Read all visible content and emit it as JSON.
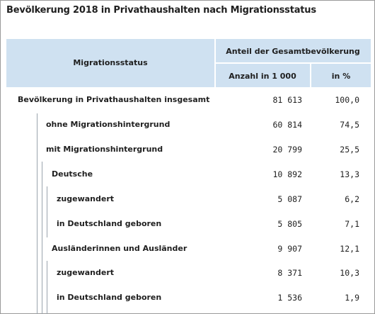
{
  "title": "Bevölkerung 2018 in Privathaushalten nach Migrationsstatus",
  "header": {
    "col1": "Migrationsstatus",
    "group": "Anteil der Gesamtbevölkerung",
    "col2": "Anzahl in 1 000",
    "col3": "in %"
  },
  "rows": [
    {
      "label": "Bevölkerung in Privathaushalten insgesamt",
      "count": "81 613",
      "percent": "100,0"
    },
    {
      "label": "ohne Migrationshintergrund",
      "count": "60 814",
      "percent": "74,5"
    },
    {
      "label": "mit Migrationshintergrund",
      "count": "20 799",
      "percent": "25,5"
    },
    {
      "label": "Deutsche",
      "count": "10 892",
      "percent": "13,3"
    },
    {
      "label": "zugewandert",
      "count": "5 087",
      "percent": "6,2"
    },
    {
      "label": "in Deutschland geboren",
      "count": "5 805",
      "percent": "7,1"
    },
    {
      "label": "Ausländerinnen und Ausländer",
      "count": "9 907",
      "percent": "12,1"
    },
    {
      "label": "zugewandert",
      "count": "8 371",
      "percent": "10,3"
    },
    {
      "label": "in Deutschland geboren",
      "count": "1 536",
      "percent": "1,9"
    }
  ]
}
